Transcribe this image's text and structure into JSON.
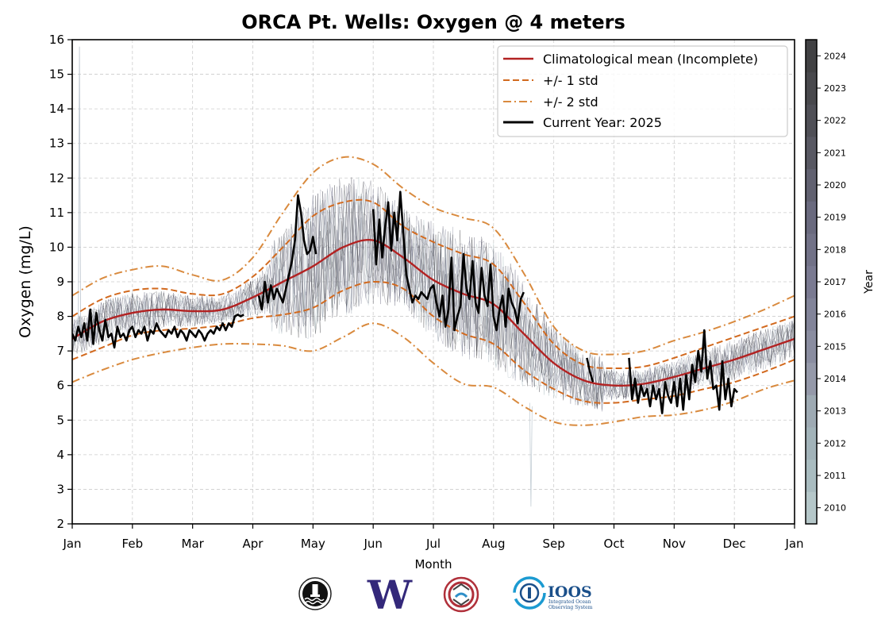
{
  "chart_data": {
    "type": "line",
    "title": "ORCA Pt. Wells: Oxygen @ 4 meters",
    "xlabel": "Month",
    "ylabel": "Oxygen (mg/L)",
    "ylim": [
      2,
      16
    ],
    "yticks": [
      2,
      3,
      4,
      5,
      6,
      7,
      8,
      9,
      10,
      11,
      12,
      13,
      14,
      15,
      16
    ],
    "xlim_months": [
      0,
      12
    ],
    "xticks": [
      "Jan",
      "Feb",
      "Mar",
      "Apr",
      "May",
      "Jun",
      "Jul",
      "Aug",
      "Sep",
      "Oct",
      "Nov",
      "Dec",
      "Jan"
    ],
    "grid": true,
    "legend_position": "top-right",
    "legend": [
      {
        "label": "Climatological mean (Incomplete)",
        "style": "solid",
        "color": "#b22222"
      },
      {
        "label": "+/- 1 std",
        "style": "dashed",
        "color": "#d2691e"
      },
      {
        "label": "+/- 2 std",
        "style": "dashdot",
        "color": "#d98a3e"
      },
      {
        "label": "Current Year: 2025",
        "style": "solid",
        "color": "#000000"
      }
    ],
    "colorbar": {
      "label": "Year",
      "years": [
        2010,
        2011,
        2012,
        2013,
        2014,
        2015,
        2016,
        2017,
        2018,
        2019,
        2020,
        2021,
        2022,
        2023,
        2024
      ],
      "colors": [
        "#b5c7c9",
        "#a9bcc0",
        "#a2b3b9",
        "#9eaab3",
        "#9599a9",
        "#8a8da0",
        "#828499",
        "#7a7a91",
        "#727287",
        "#6a6a7e",
        "#616170",
        "#585862",
        "#4f4f56",
        "#48484c",
        "#414143"
      ]
    },
    "x_month": [
      0,
      0.5,
      1,
      1.5,
      2,
      2.5,
      3,
      3.5,
      4,
      4.5,
      5,
      5.5,
      6,
      6.5,
      7,
      7.5,
      8,
      8.5,
      9,
      9.5,
      10,
      10.5,
      11,
      11.5,
      12
    ],
    "series": [
      {
        "name": "Climatological mean",
        "values": [
          7.35,
          7.85,
          8.1,
          8.2,
          8.15,
          8.2,
          8.55,
          9.0,
          9.45,
          10.0,
          10.2,
          9.7,
          9.05,
          8.65,
          8.35,
          7.5,
          6.65,
          6.15,
          6.0,
          6.05,
          6.25,
          6.5,
          6.75,
          7.05,
          7.35
        ]
      },
      {
        "name": "+1 std",
        "values": [
          8.0,
          8.5,
          8.75,
          8.8,
          8.65,
          8.65,
          9.15,
          10.0,
          10.9,
          11.3,
          11.3,
          10.6,
          10.15,
          9.8,
          9.5,
          8.4,
          7.2,
          6.6,
          6.5,
          6.55,
          6.8,
          7.1,
          7.4,
          7.7,
          8.0
        ]
      },
      {
        "name": "-1 std",
        "values": [
          6.75,
          7.1,
          7.45,
          7.6,
          7.65,
          7.75,
          7.95,
          8.05,
          8.25,
          8.75,
          9.0,
          8.8,
          8.0,
          7.5,
          7.2,
          6.45,
          5.9,
          5.55,
          5.5,
          5.6,
          5.7,
          5.9,
          6.1,
          6.4,
          6.75
        ]
      },
      {
        "name": "+2 std",
        "values": [
          8.6,
          9.1,
          9.35,
          9.45,
          9.2,
          9.05,
          9.7,
          11.0,
          12.15,
          12.6,
          12.4,
          11.7,
          11.15,
          10.85,
          10.55,
          9.25,
          7.7,
          7.0,
          6.9,
          7.0,
          7.3,
          7.55,
          7.85,
          8.2,
          8.6
        ]
      },
      {
        "name": "-2 std",
        "values": [
          6.1,
          6.45,
          6.75,
          6.95,
          7.1,
          7.2,
          7.2,
          7.15,
          7.0,
          7.4,
          7.8,
          7.4,
          6.65,
          6.05,
          5.95,
          5.4,
          4.95,
          4.85,
          4.95,
          5.1,
          5.15,
          5.3,
          5.55,
          5.9,
          6.15
        ]
      },
      {
        "name": "Current Year: 2025",
        "segments": [
          {
            "x": [
              0.0,
              0.05,
              0.1,
              0.15,
              0.2,
              0.25,
              0.3,
              0.35,
              0.4,
              0.45,
              0.5,
              0.55,
              0.6,
              0.65,
              0.7,
              0.75,
              0.8,
              0.85,
              0.9,
              0.95,
              1.0,
              1.05,
              1.1,
              1.15,
              1.2,
              1.25,
              1.3,
              1.35,
              1.4,
              1.45,
              1.5,
              1.55,
              1.6,
              1.65,
              1.7,
              1.75,
              1.8,
              1.85,
              1.9,
              1.95,
              2.0,
              2.05,
              2.1,
              2.15,
              2.2,
              2.25,
              2.3,
              2.35,
              2.4,
              2.45,
              2.5,
              2.55,
              2.6,
              2.65,
              2.7,
              2.75,
              2.8,
              2.85
            ],
            "y": [
              7.5,
              7.3,
              7.7,
              7.4,
              7.8,
              7.3,
              8.2,
              7.2,
              8.1,
              7.6,
              7.3,
              7.9,
              7.4,
              7.5,
              7.1,
              7.7,
              7.4,
              7.5,
              7.3,
              7.6,
              7.7,
              7.4,
              7.6,
              7.5,
              7.7,
              7.3,
              7.6,
              7.5,
              7.8,
              7.6,
              7.5,
              7.4,
              7.6,
              7.5,
              7.7,
              7.4,
              7.6,
              7.5,
              7.3,
              7.6,
              7.5,
              7.4,
              7.6,
              7.5,
              7.3,
              7.5,
              7.6,
              7.5,
              7.7,
              7.6,
              7.8,
              7.6,
              7.8,
              7.7,
              8.0,
              8.05,
              8.0,
              8.05
            ]
          },
          {
            "x": [
              3.1,
              3.15,
              3.2,
              3.25,
              3.3,
              3.35,
              3.4,
              3.45,
              3.5,
              3.55,
              3.6,
              3.65,
              3.7,
              3.75,
              3.8,
              3.85,
              3.9,
              3.95,
              4.0,
              4.05
            ],
            "y": [
              8.6,
              8.2,
              9.0,
              8.4,
              8.9,
              8.5,
              8.8,
              8.6,
              8.4,
              8.8,
              9.2,
              9.6,
              10.2,
              11.5,
              11.0,
              10.2,
              9.8,
              9.9,
              10.3,
              9.8
            ]
          },
          {
            "x": [
              5.0,
              5.05,
              5.1,
              5.15,
              5.2,
              5.25,
              5.3,
              5.35,
              5.4,
              5.45,
              5.5,
              5.55,
              5.6,
              5.65,
              5.7,
              5.75,
              5.8,
              5.85,
              5.9,
              5.95,
              6.0,
              6.05,
              6.1,
              6.15,
              6.2,
              6.25,
              6.3,
              6.35,
              6.4,
              6.45,
              6.5,
              6.55,
              6.6,
              6.65,
              6.7,
              6.75,
              6.8,
              6.85,
              6.9,
              6.95,
              7.0,
              7.05,
              7.1,
              7.15,
              7.2,
              7.25,
              7.3,
              7.35,
              7.4,
              7.45,
              7.5
            ],
            "y": [
              11.1,
              9.5,
              10.8,
              9.7,
              10.6,
              11.3,
              9.9,
              11.0,
              10.2,
              11.6,
              10.4,
              9.2,
              8.8,
              8.4,
              8.6,
              8.5,
              8.7,
              8.6,
              8.5,
              8.8,
              8.9,
              8.4,
              8.0,
              8.6,
              7.7,
              8.2,
              9.7,
              7.6,
              8.0,
              8.3,
              9.8,
              8.8,
              8.5,
              9.6,
              8.4,
              8.1,
              9.4,
              8.6,
              8.3,
              9.5,
              8.0,
              7.6,
              8.2,
              8.6,
              7.7,
              8.8,
              8.4,
              8.2,
              7.8,
              8.5,
              8.7
            ]
          },
          {
            "x": [
              8.55,
              8.6,
              8.65
            ],
            "y": [
              6.8,
              6.4,
              6.1
            ]
          },
          {
            "x": [
              9.25,
              9.3,
              9.35,
              9.4,
              9.45,
              9.5,
              9.55,
              9.6,
              9.65,
              9.7,
              9.75,
              9.8,
              9.85,
              9.9,
              9.95,
              10.0,
              10.05,
              10.1,
              10.15,
              10.2,
              10.25,
              10.3,
              10.35,
              10.4,
              10.45,
              10.5,
              10.55,
              10.6,
              10.65,
              10.7,
              10.75,
              10.8,
              10.85,
              10.9,
              10.95,
              11.0,
              11.05
            ],
            "y": [
              6.8,
              5.6,
              6.2,
              5.5,
              6.0,
              5.7,
              5.9,
              5.4,
              6.0,
              5.6,
              5.9,
              5.2,
              6.1,
              5.7,
              5.5,
              6.1,
              5.4,
              6.2,
              5.3,
              6.3,
              5.6,
              6.6,
              6.1,
              7.0,
              6.4,
              7.6,
              6.2,
              6.7,
              5.9,
              6.0,
              5.3,
              6.7,
              5.6,
              6.2,
              5.4,
              5.9,
              5.8
            ]
          }
        ]
      }
    ]
  },
  "logos": [
    {
      "name": "nanoos-buoy-logo",
      "text": ""
    },
    {
      "name": "uw-logo",
      "text": "W"
    },
    {
      "name": "native-art-logo",
      "text": ""
    },
    {
      "name": "ioos-logo",
      "text": "IOOS",
      "subtitle_line1": "Integrated Ocean",
      "subtitle_line2": "Observing System"
    }
  ]
}
